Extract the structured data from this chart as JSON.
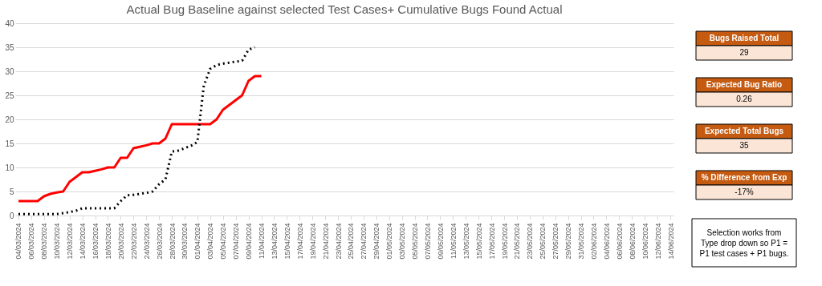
{
  "chart_data": [
    {
      "type": "line",
      "title": "Actual Bug Baseline against selected Test Cases+ Cumulative Bugs Found Actual",
      "x": [
        "2024-03-04",
        "2024-03-05",
        "2024-03-06",
        "2024-03-07",
        "2024-03-08",
        "2024-03-09",
        "2024-03-10",
        "2024-03-11",
        "2024-03-12",
        "2024-03-13",
        "2024-03-14",
        "2024-03-15",
        "2024-03-16",
        "2024-03-17",
        "2024-03-18",
        "2024-03-19",
        "2024-03-20",
        "2024-03-21",
        "2024-03-22",
        "2024-03-23",
        "2024-03-24",
        "2024-03-25",
        "2024-03-26",
        "2024-03-27",
        "2024-03-28",
        "2024-03-29",
        "2024-03-30",
        "2024-03-31",
        "2024-04-01",
        "2024-04-02",
        "2024-04-03",
        "2024-04-04",
        "2024-04-05",
        "2024-04-06",
        "2024-04-07",
        "2024-04-08",
        "2024-04-09",
        "2024-04-10",
        "2024-04-11"
      ],
      "series": [
        {
          "color": "#ff0000",
          "line_style": "solid",
          "values": [
            3,
            3,
            3,
            3,
            4,
            4.5,
            4.8,
            5,
            7,
            8,
            9,
            9,
            9.3,
            9.6,
            10,
            10,
            12,
            12,
            14,
            14.3,
            14.6,
            15,
            15,
            16,
            19,
            19,
            19,
            19,
            19,
            19,
            19,
            20,
            22,
            23,
            24,
            25,
            28,
            29,
            29
          ]
        },
        {
          "color": "#000000",
          "line_style": "dotted",
          "values": [
            0.3,
            0.3,
            0.3,
            0.3,
            0.3,
            0.3,
            0.3,
            0.5,
            0.7,
            1,
            1.5,
            1.5,
            1.5,
            1.5,
            1.5,
            1.5,
            3,
            4.2,
            4.3,
            4.5,
            4.7,
            5,
            6.5,
            7.5,
            13.3,
            13.5,
            14,
            14.5,
            15.3,
            27,
            30.5,
            31.3,
            31.6,
            31.8,
            32,
            32.2,
            34.5,
            35,
            null
          ]
        }
      ],
      "xlim": [
        "2024-03-03T12:00",
        "2024-06-14T12:00"
      ],
      "xticks": [
        {
          "value": "2024-03-04",
          "label": "04/03/2024"
        },
        {
          "value": "2024-03-06",
          "label": "06/03/2024"
        },
        {
          "value": "2024-03-08",
          "label": "08/03/2024"
        },
        {
          "value": "2024-03-10",
          "label": "10/03/2024"
        },
        {
          "value": "2024-03-12",
          "label": "12/03/2024"
        },
        {
          "value": "2024-03-14",
          "label": "14/03/2024"
        },
        {
          "value": "2024-03-16",
          "label": "16/03/2024"
        },
        {
          "value": "2024-03-18",
          "label": "18/03/2024"
        },
        {
          "value": "2024-03-20",
          "label": "20/03/2024"
        },
        {
          "value": "2024-03-22",
          "label": "22/03/2024"
        },
        {
          "value": "2024-03-24",
          "label": "24/03/2024"
        },
        {
          "value": "2024-03-26",
          "label": "26/03/2024"
        },
        {
          "value": "2024-03-28",
          "label": "28/03/2024"
        },
        {
          "value": "2024-03-30",
          "label": "30/03/2024"
        },
        {
          "value": "2024-04-01",
          "label": "01/04/2024"
        },
        {
          "value": "2024-04-03",
          "label": "03/04/2024"
        },
        {
          "value": "2024-04-05",
          "label": "05/04/2024"
        },
        {
          "value": "2024-04-07",
          "label": "07/04/2024"
        },
        {
          "value": "2024-04-09",
          "label": "09/04/2024"
        },
        {
          "value": "2024-04-11",
          "label": "11/04/2024"
        },
        {
          "value": "2024-04-13",
          "label": "13/04/2024"
        },
        {
          "value": "2024-04-15",
          "label": "15/04/2024"
        },
        {
          "value": "2024-04-17",
          "label": "17/04/2024"
        },
        {
          "value": "2024-04-19",
          "label": "19/04/2024"
        },
        {
          "value": "2024-04-21",
          "label": "21/04/2024"
        },
        {
          "value": "2024-04-23",
          "label": "23/04/2024"
        },
        {
          "value": "2024-04-25",
          "label": "25/04/2024"
        },
        {
          "value": "2024-04-27",
          "label": "27/04/2024"
        },
        {
          "value": "2024-04-29",
          "label": "29/04/2024"
        },
        {
          "value": "2024-05-01",
          "label": "01/05/2024"
        },
        {
          "value": "2024-05-03",
          "label": "03/05/2024"
        },
        {
          "value": "2024-05-05",
          "label": "05/05/2024"
        },
        {
          "value": "2024-05-07",
          "label": "07/05/2024"
        },
        {
          "value": "2024-05-09",
          "label": "09/05/2024"
        },
        {
          "value": "2024-05-11",
          "label": "11/05/2024"
        },
        {
          "value": "2024-05-13",
          "label": "13/05/2024"
        },
        {
          "value": "2024-05-15",
          "label": "15/05/2024"
        },
        {
          "value": "2024-05-17",
          "label": "17/05/2024"
        },
        {
          "value": "2024-05-19",
          "label": "19/05/2024"
        },
        {
          "value": "2024-05-21",
          "label": "21/05/2024"
        },
        {
          "value": "2024-05-23",
          "label": "23/05/2024"
        },
        {
          "value": "2024-05-25",
          "label": "25/05/2024"
        },
        {
          "value": "2024-05-27",
          "label": "27/05/2024"
        },
        {
          "value": "2024-05-29",
          "label": "29/05/2024"
        },
        {
          "value": "2024-05-31",
          "label": "31/05/2024"
        },
        {
          "value": "2024-06-02",
          "label": "02/06/2024"
        },
        {
          "value": "2024-06-04",
          "label": "04/06/2024"
        },
        {
          "value": "2024-06-06",
          "label": "06/06/2024"
        },
        {
          "value": "2024-06-08",
          "label": "08/06/2024"
        },
        {
          "value": "2024-06-10",
          "label": "10/06/2024"
        },
        {
          "value": "2024-06-12",
          "label": "12/06/2024"
        },
        {
          "value": "2024-06-14",
          "label": "14/06/2024"
        }
      ],
      "ylim": [
        0,
        40
      ],
      "yticks": [
        0,
        5,
        10,
        15,
        20,
        25,
        30,
        35,
        40
      ],
      "grid": "y",
      "marker": "none"
    },
    {
      "type": "other",
      "annotations": [
        "Bugs Raised Total",
        "29",
        "Expected Bug Ratio",
        "0.26",
        "Expected Total Bugs",
        "35",
        "% Difference from Exp",
        "-17%",
        "Selection works from Type drop down so P1 = P1 test cases + P1 bugs."
      ]
    }
  ]
}
